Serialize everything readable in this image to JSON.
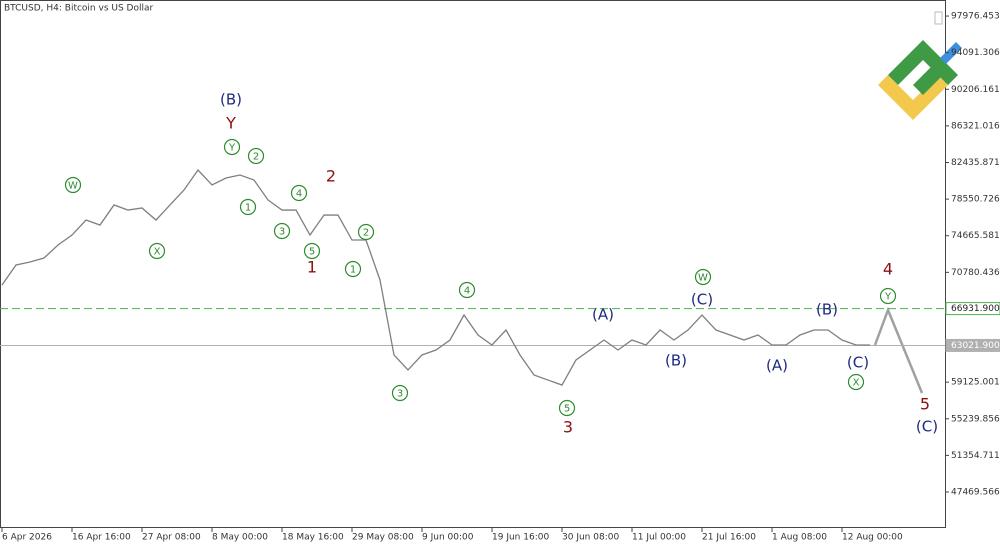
{
  "chart_data": {
    "type": "line",
    "title": "BTCUSD, H4:  Bitcoin vs US Dollar",
    "categories": [
      "6 Apr 2026",
      null,
      null,
      null,
      null,
      "16 Apr 16:00",
      null,
      null,
      null,
      null,
      "27 Apr 08:00",
      null,
      null,
      null,
      null,
      "8 May 00:00",
      null,
      null,
      null,
      null,
      "18 May 16:00",
      null,
      null,
      null,
      null,
      "29 May 08:00",
      null,
      null,
      null,
      null,
      "9 Jun 00:00",
      null,
      null,
      null,
      null,
      "19 Jun 16:00",
      null,
      null,
      null,
      null,
      "30 Jun 08:00",
      null,
      null,
      null,
      null,
      "11 Jul 00:00",
      null,
      null,
      null,
      null,
      "21 Jul 16:00",
      null,
      null,
      null,
      null,
      "1 Aug 08:00",
      null,
      null,
      null,
      null,
      "12 Aug 00:00",
      null,
      null
    ],
    "series": [
      {
        "name": "BTCUSD",
        "color": "#7f7f7f",
        "values": [
          69440,
          71560,
          71880,
          72300,
          73680,
          74740,
          76330,
          75800,
          77930,
          77390,
          77610,
          76330,
          77930,
          79520,
          81640,
          80050,
          80790,
          81110,
          80580,
          78460,
          77390,
          77390,
          74740,
          76860,
          76860,
          74210,
          74210,
          69970,
          62010,
          60420,
          62010,
          62540,
          63600,
          66250,
          64130,
          63070,
          64660,
          62010,
          59890,
          59350,
          58820,
          61480,
          62540,
          63600,
          62540,
          63600,
          63070,
          64660,
          63600,
          64660,
          66250,
          64660,
          64130,
          63600,
          64130,
          63070,
          63070,
          64130,
          64660,
          64660,
          63600,
          63070,
          63070
        ]
      }
    ],
    "ylim": [
      43650,
      99680
    ],
    "yticks": [
      97976.453,
      94091.306,
      90206.161,
      86321.016,
      82435.871,
      78550.726,
      74665.581,
      70780.436,
      59125.001,
      55239.856,
      51354.711,
      47469.566
    ],
    "hlines": [
      {
        "value": 66931.9,
        "label": "66931.900",
        "color": "#4caf50"
      },
      {
        "value": 63021.9,
        "label": "63021.900",
        "color": "#b0b0b0"
      }
    ],
    "annotations": [
      "(B)",
      "Y",
      "Y",
      "W",
      "X",
      "2",
      "1",
      "3",
      "4",
      "5",
      "1",
      "2",
      "2",
      "1",
      "3",
      "4",
      "5",
      "3",
      "(A)",
      "(B)",
      "W",
      "(C)",
      "(A)",
      "(B)",
      "(C)",
      "X",
      "4",
      "Y",
      "5",
      "(C)"
    ]
  }
}
